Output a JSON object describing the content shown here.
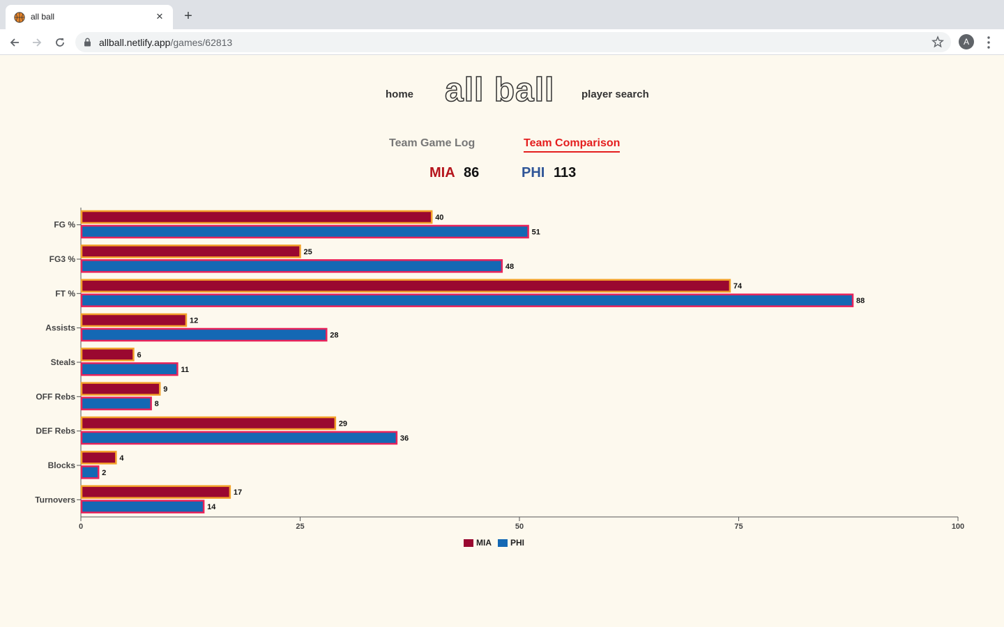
{
  "browser": {
    "tab_title": "all ball",
    "url_host": "allball.netlify.app",
    "url_path": "/games/62813",
    "avatar_letter": "A"
  },
  "nav": {
    "home": "home",
    "logo": "all ball",
    "player_search": "player search"
  },
  "tabs": {
    "game_log": "Team Game Log",
    "comparison": "Team Comparison"
  },
  "score": {
    "home_team": "MIA",
    "home_score": "86",
    "away_team": "PHI",
    "away_score": "113"
  },
  "colors": {
    "mia": "#9a0830",
    "phi": "#1468b4",
    "mia_border": "#f3a12a",
    "phi_border": "#e8235a",
    "score_mia": "#b5141c",
    "score_phi": "#2f5597"
  },
  "chart_data": {
    "type": "bar",
    "orientation": "horizontal",
    "categories": [
      "FG %",
      "FG3 %",
      "FT %",
      "Assists",
      "Steals",
      "OFF Rebs",
      "DEF Rebs",
      "Blocks",
      "Turnovers"
    ],
    "series": [
      {
        "name": "MIA",
        "values": [
          40,
          25,
          74,
          12,
          6,
          9,
          29,
          4,
          17
        ]
      },
      {
        "name": "PHI",
        "values": [
          51,
          48,
          88,
          28,
          11,
          8,
          36,
          2,
          14
        ]
      }
    ],
    "xlim": [
      0,
      100
    ],
    "xticks": [
      "0",
      "25",
      "50",
      "75",
      "100"
    ],
    "legend": "bottom-center"
  }
}
